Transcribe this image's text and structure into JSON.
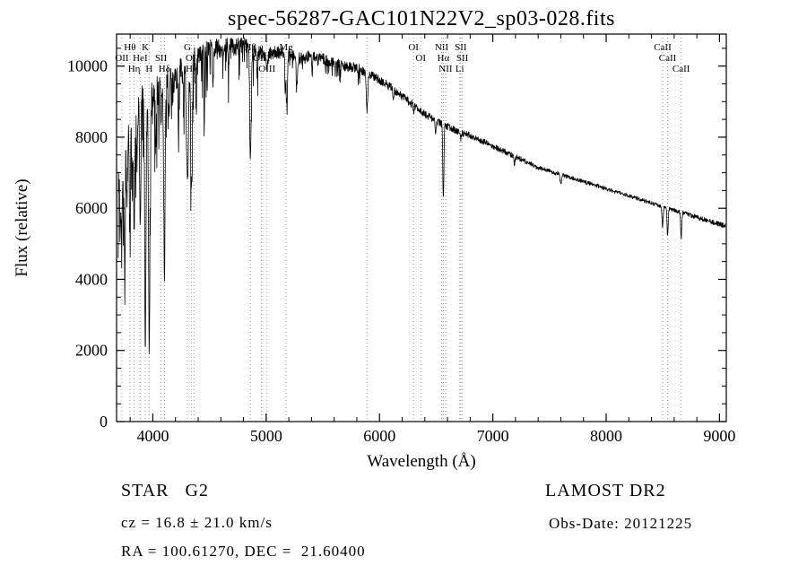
{
  "title": "spec-56287-GAC101N22V2_sp03-028.fits",
  "annotations": {
    "class_label": "STAR   G2",
    "survey": "LAMOST DR2",
    "cz": "cz = 16.8 ± 21.0 km/s",
    "obs_date": "Obs-Date: 20121225",
    "coords": "RA = 100.61270, DEC =  21.60400"
  },
  "chart_data": {
    "type": "line",
    "title": "spec-56287-GAC101N22V2_sp03-028.fits",
    "xlabel": "Wavelength (Å)",
    "ylabel": "Flux (relative)",
    "xlim": [
      3680,
      9060
    ],
    "ylim": [
      0,
      10900
    ],
    "x_ticks": [
      4000,
      5000,
      6000,
      7000,
      8000,
      9000
    ],
    "y_ticks": [
      0,
      2000,
      4000,
      6000,
      8000,
      10000
    ],
    "x_minor_step": 200,
    "y_minor_step": 500,
    "grid": false,
    "legend": "none",
    "line_color": "#000000",
    "frame_color": "#000000",
    "marker_line_color": "#999999",
    "continuum": [
      [
        3700,
        6800
      ],
      [
        3740,
        7200
      ],
      [
        3780,
        7800
      ],
      [
        3830,
        8300
      ],
      [
        3880,
        8800
      ],
      [
        3940,
        9000
      ],
      [
        4000,
        9200
      ],
      [
        4100,
        9500
      ],
      [
        4200,
        9700
      ],
      [
        4300,
        10000
      ],
      [
        4400,
        10300
      ],
      [
        4500,
        10450
      ],
      [
        4600,
        10500
      ],
      [
        4700,
        10550
      ],
      [
        4800,
        10600
      ],
      [
        4900,
        10400
      ],
      [
        5000,
        10350
      ],
      [
        5100,
        10400
      ],
      [
        5200,
        10350
      ],
      [
        5300,
        10200
      ],
      [
        5400,
        10300
      ],
      [
        5500,
        10200
      ],
      [
        5600,
        10100
      ],
      [
        5700,
        10000
      ],
      [
        5800,
        9950
      ],
      [
        5900,
        9800
      ],
      [
        6000,
        9600
      ],
      [
        6100,
        9400
      ],
      [
        6200,
        9150
      ],
      [
        6300,
        8900
      ],
      [
        6400,
        8650
      ],
      [
        6500,
        8450
      ],
      [
        6600,
        8300
      ],
      [
        6700,
        8150
      ],
      [
        6800,
        8050
      ],
      [
        6900,
        7900
      ],
      [
        7000,
        7750
      ],
      [
        7200,
        7450
      ],
      [
        7400,
        7150
      ],
      [
        7600,
        6950
      ],
      [
        7800,
        6750
      ],
      [
        8000,
        6550
      ],
      [
        8200,
        6350
      ],
      [
        8400,
        6150
      ],
      [
        8600,
        5950
      ],
      [
        8800,
        5750
      ],
      [
        9000,
        5550
      ],
      [
        9060,
        5500
      ]
    ],
    "absorption_lines": [
      {
        "wl": 3712,
        "depth": 1400,
        "sigma": 4
      },
      {
        "wl": 3727,
        "depth": 1600,
        "sigma": 5
      },
      {
        "wl": 3750,
        "depth": 2400,
        "sigma": 5
      },
      {
        "wl": 3771,
        "depth": 1900,
        "sigma": 4
      },
      {
        "wl": 3798,
        "depth": 2700,
        "sigma": 5
      },
      {
        "wl": 3820,
        "depth": 1600,
        "sigma": 4
      },
      {
        "wl": 3835,
        "depth": 2900,
        "sigma": 5
      },
      {
        "wl": 3860,
        "depth": 1400,
        "sigma": 4
      },
      {
        "wl": 3889,
        "depth": 3300,
        "sigma": 5
      },
      {
        "wl": 3934,
        "depth": 6800,
        "sigma": 6
      },
      {
        "wl": 3968,
        "depth": 7200,
        "sigma": 6
      },
      {
        "wl": 4026,
        "depth": 1300,
        "sigma": 4
      },
      {
        "wl": 4072,
        "depth": 1000,
        "sigma": 4
      },
      {
        "wl": 4102,
        "depth": 5400,
        "sigma": 6
      },
      {
        "wl": 4144,
        "depth": 1100,
        "sigma": 4
      },
      {
        "wl": 4226,
        "depth": 1500,
        "sigma": 4
      },
      {
        "wl": 4271,
        "depth": 1000,
        "sigma": 4
      },
      {
        "wl": 4305,
        "depth": 3300,
        "sigma": 9
      },
      {
        "wl": 4340,
        "depth": 3400,
        "sigma": 6
      },
      {
        "wl": 4383,
        "depth": 1500,
        "sigma": 4
      },
      {
        "wl": 4455,
        "depth": 900,
        "sigma": 4
      },
      {
        "wl": 4531,
        "depth": 800,
        "sigma": 4
      },
      {
        "wl": 4668,
        "depth": 700,
        "sigma": 4
      },
      {
        "wl": 4861,
        "depth": 3200,
        "sigma": 6
      },
      {
        "wl": 4920,
        "depth": 600,
        "sigma": 4
      },
      {
        "wl": 5007,
        "depth": 500,
        "sigma": 4
      },
      {
        "wl": 5169,
        "depth": 1200,
        "sigma": 4
      },
      {
        "wl": 5183,
        "depth": 1600,
        "sigma": 5
      },
      {
        "wl": 5270,
        "depth": 800,
        "sigma": 5
      },
      {
        "wl": 5406,
        "depth": 500,
        "sigma": 4
      },
      {
        "wl": 5890,
        "depth": 1100,
        "sigma": 6
      },
      {
        "wl": 6122,
        "depth": 400,
        "sigma": 4
      },
      {
        "wl": 6300,
        "depth": 250,
        "sigma": 4
      },
      {
        "wl": 6495,
        "depth": 350,
        "sigma": 4
      },
      {
        "wl": 6563,
        "depth": 2100,
        "sigma": 5
      },
      {
        "wl": 6717,
        "depth": 250,
        "sigma": 4
      },
      {
        "wl": 7190,
        "depth": 200,
        "sigma": 5
      },
      {
        "wl": 7600,
        "depth": 300,
        "sigma": 6
      },
      {
        "wl": 8498,
        "depth": 550,
        "sigma": 5
      },
      {
        "wl": 8542,
        "depth": 800,
        "sigma": 5
      },
      {
        "wl": 8662,
        "depth": 700,
        "sigma": 5
      }
    ],
    "noise": {
      "seed": 7,
      "step": 2.5,
      "anchors": [
        [
          3690,
          550
        ],
        [
          3800,
          620
        ],
        [
          3900,
          680
        ],
        [
          4000,
          520
        ],
        [
          4150,
          430
        ],
        [
          4300,
          380
        ],
        [
          4500,
          300
        ],
        [
          4700,
          260
        ],
        [
          5000,
          200
        ],
        [
          5300,
          170
        ],
        [
          5600,
          150
        ],
        [
          6000,
          130
        ],
        [
          6400,
          110
        ],
        [
          6800,
          90
        ],
        [
          7200,
          75
        ],
        [
          7600,
          60
        ],
        [
          8000,
          55
        ],
        [
          8400,
          55
        ],
        [
          8800,
          65
        ],
        [
          9050,
          75
        ]
      ],
      "spikes": [
        {
          "max_wl": 4480,
          "prob": 0.22,
          "mag": 1700
        },
        {
          "max_wl": 4980,
          "prob": 0.16,
          "mag": 1000
        },
        {
          "max_wl": 5850,
          "prob": 0.1,
          "mag": 450
        }
      ]
    },
    "spectral_markers": [
      {
        "wl": 3727,
        "label": "OII",
        "row": 2
      },
      {
        "wl": 3798,
        "label": "Hθ",
        "row": 1
      },
      {
        "wl": 3835,
        "label": "Hη",
        "row": 3
      },
      {
        "wl": 3889,
        "label": "HeI",
        "row": 2
      },
      {
        "wl": 3934,
        "label": "K",
        "row": 1
      },
      {
        "wl": 3968,
        "label": "H",
        "row": 3
      },
      {
        "wl": 4072,
        "label": "SII",
        "row": 2
      },
      {
        "wl": 4102,
        "label": "Hδ",
        "row": 3
      },
      {
        "wl": 4305,
        "label": "G",
        "row": 1
      },
      {
        "wl": 4340,
        "label": "Hγ",
        "row": 3
      },
      {
        "wl": 4363,
        "label": "OIII",
        "row": 2
      },
      {
        "wl": 4861,
        "label": "Hβ",
        "row": 1
      },
      {
        "wl": 4959,
        "label": "OIII",
        "row": 2
      },
      {
        "wl": 5007,
        "label": "OIII",
        "row": 3
      },
      {
        "wl": 5175,
        "label": "Mg",
        "row": 1
      },
      {
        "wl": 5890,
        "label": "",
        "row": 2
      },
      {
        "wl": 6300,
        "label": "OI",
        "row": 1
      },
      {
        "wl": 6364,
        "label": "OI",
        "row": 2
      },
      {
        "wl": 6548,
        "label": "NII",
        "row": 1
      },
      {
        "wl": 6563,
        "label": "Hα",
        "row": 2
      },
      {
        "wl": 6583,
        "label": "NII",
        "row": 3
      },
      {
        "wl": 6708,
        "label": "Li",
        "row": 3
      },
      {
        "wl": 6717,
        "label": "SII",
        "row": 1
      },
      {
        "wl": 6731,
        "label": "SII",
        "row": 2
      },
      {
        "wl": 8498,
        "label": "CaII",
        "row": 1
      },
      {
        "wl": 8542,
        "label": "CaII",
        "row": 2
      },
      {
        "wl": 8662,
        "label": "CaII",
        "row": 3
      }
    ]
  }
}
